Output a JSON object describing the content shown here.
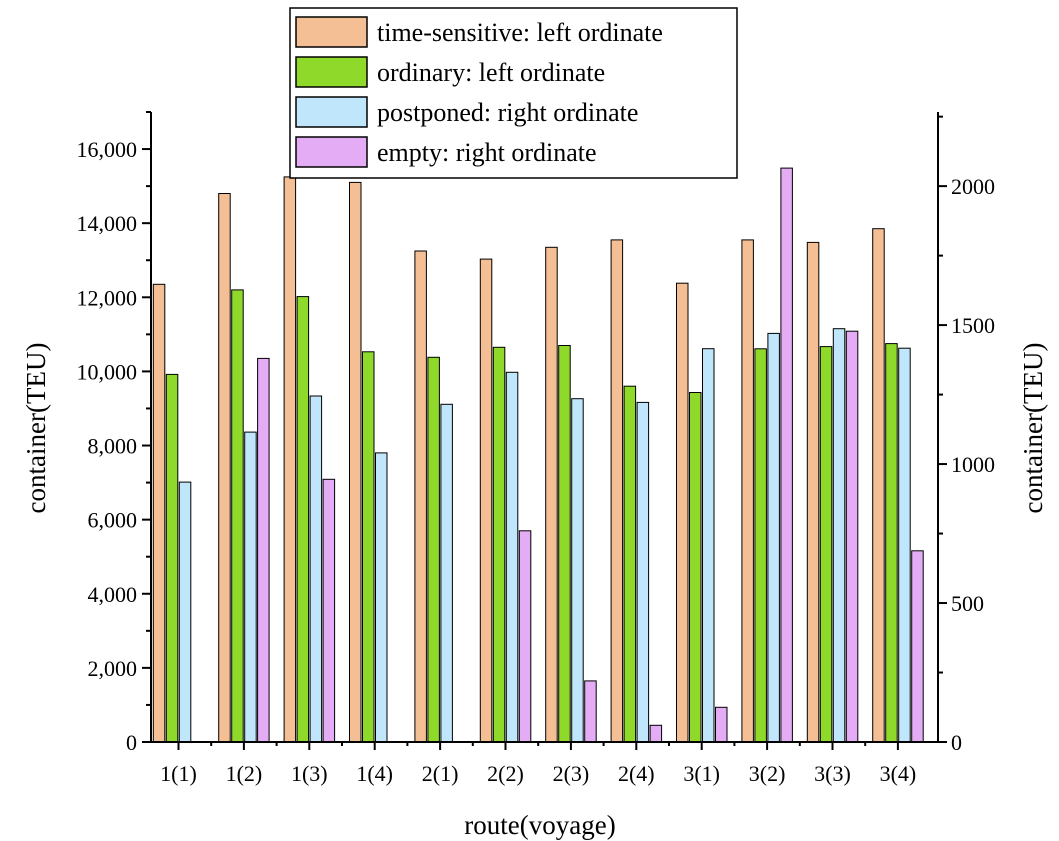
{
  "chart_data": {
    "type": "bar",
    "xlabel": "route(voyage)",
    "ylabel_left": "container(TEU)",
    "ylabel_right": "container(TEU)",
    "categories": [
      "1(1)",
      "1(2)",
      "1(3)",
      "1(4)",
      "2(1)",
      "2(2)",
      "2(3)",
      "2(4)",
      "3(1)",
      "3(2)",
      "3(3)",
      "3(4)"
    ],
    "ylim_left": [
      0,
      17000
    ],
    "ylim_right": [
      0,
      2266.7
    ],
    "yticks_left": [
      "0",
      "2,000",
      "4,000",
      "6,000",
      "8,000",
      "10,000",
      "12,000",
      "14,000",
      "16,000"
    ],
    "yticks_right": [
      "0",
      "500",
      "1000",
      "1500",
      "2000"
    ],
    "series": [
      {
        "name": "time-sensitive: left ordinate",
        "axis": "left",
        "color": "#F5BF95",
        "values": [
          12350,
          14800,
          15250,
          15100,
          13250,
          13030,
          13350,
          13550,
          12380,
          13550,
          13480,
          13850
        ]
      },
      {
        "name": "ordinary: left ordinate",
        "axis": "left",
        "color": "#8FD92A",
        "values": [
          9920,
          12200,
          12020,
          10530,
          10380,
          10650,
          10700,
          9600,
          9430,
          10610,
          10670,
          10750
        ]
      },
      {
        "name": "postponed: right ordinate",
        "axis": "right",
        "color": "#BFE6FA",
        "values": [
          935,
          1115,
          1245,
          1040,
          1215,
          1330,
          1235,
          1222,
          1415,
          1470,
          1487,
          1417
        ]
      },
      {
        "name": "empty: right ordinate",
        "axis": "right",
        "color": "#E3ACF5",
        "values": [
          0,
          1380,
          945,
          0,
          0,
          760,
          220,
          60,
          125,
          2065,
          1478,
          688
        ]
      }
    ],
    "legend_position": "top"
  }
}
